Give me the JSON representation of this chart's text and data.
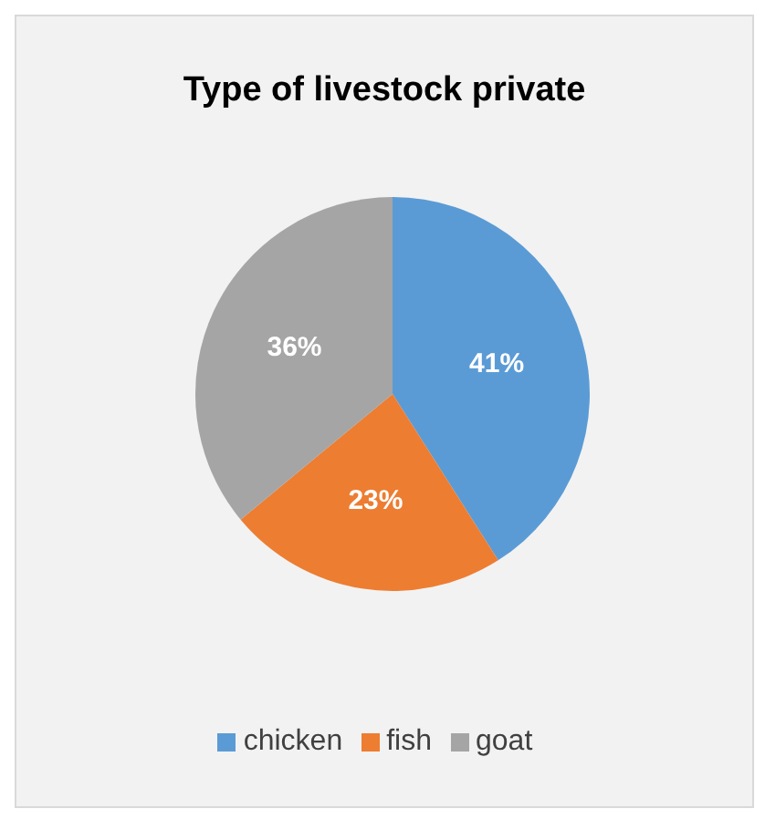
{
  "chart_data": {
    "type": "pie",
    "title": "Type of livestock private",
    "categories": [
      "chicken",
      "fish",
      "goat"
    ],
    "values": [
      41,
      23,
      36
    ],
    "value_labels": [
      "41%",
      "23%",
      "36%"
    ],
    "colors": [
      "#5b9bd5",
      "#ed7d31",
      "#a5a5a5"
    ],
    "legend": "bottom"
  }
}
